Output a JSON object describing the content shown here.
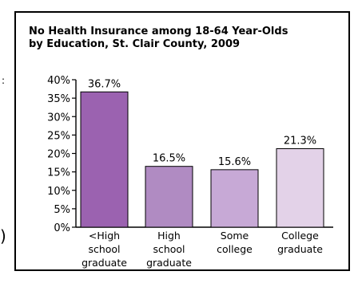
{
  "edge_marks": {
    "top": ":",
    "bottom": ")"
  },
  "chart_data": {
    "type": "bar",
    "title_lines": [
      "No Health Insurance among 18-64 Year-Olds",
      "by Education, St. Clair County, 2009"
    ],
    "categories": [
      [
        "<High",
        "school",
        "graduate"
      ],
      [
        "High",
        "school",
        "graduate"
      ],
      [
        "Some",
        "college"
      ],
      [
        "College",
        "graduate"
      ]
    ],
    "values": [
      36.7,
      16.5,
      15.6,
      21.3
    ],
    "value_labels": [
      "36.7%",
      "16.5%",
      "15.6%",
      "21.3%"
    ],
    "bar_colors": [
      "#9b62b0",
      "#b08bc2",
      "#c7a9d6",
      "#e3d2e8"
    ],
    "yticks": [
      "0%",
      "5%",
      "10%",
      "15%",
      "20%",
      "25%",
      "30%",
      "35%",
      "40%"
    ],
    "ylim": [
      0,
      40
    ],
    "grid": false,
    "legend": false
  }
}
